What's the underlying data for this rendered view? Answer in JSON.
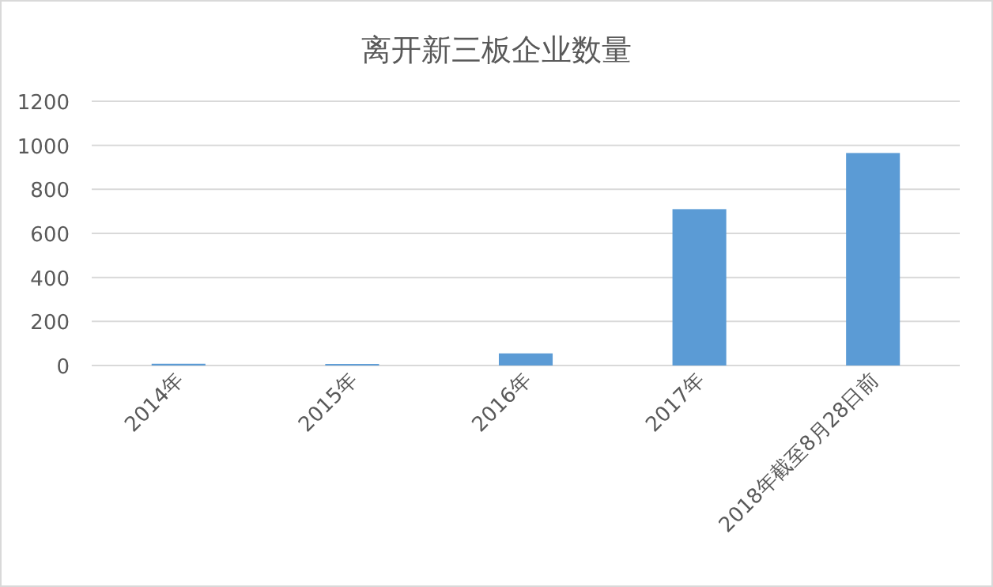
{
  "chart_data": {
    "type": "bar",
    "title": "离开新三板企业数量",
    "categories": [
      "2014年",
      "2015年",
      "2016年",
      "2017年",
      "2018年截至8月28日前"
    ],
    "values": [
      8,
      7,
      55,
      710,
      965
    ],
    "color": "#5b9bd5",
    "ylim": [
      0,
      1200
    ],
    "yticks": [
      0,
      200,
      400,
      600,
      800,
      1000,
      1200
    ],
    "grid": "y"
  }
}
